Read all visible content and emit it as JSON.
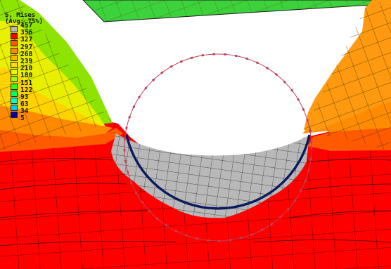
{
  "legend": {
    "title_line1": "S, Mises",
    "title_line2": "(Avg: 75%)",
    "levels": [
      {
        "value": "457",
        "color": "#b8b8b8"
      },
      {
        "value": "356",
        "color": "#ff0000"
      },
      {
        "value": "327",
        "color": "#ff5a00"
      },
      {
        "value": "297",
        "color": "#ff8c00"
      },
      {
        "value": "268",
        "color": "#ffb400"
      },
      {
        "value": "239",
        "color": "#ffdc00"
      },
      {
        "value": "210",
        "color": "#e6ff00"
      },
      {
        "value": "180",
        "color": "#9aff00"
      },
      {
        "value": "151",
        "color": "#33ff00"
      },
      {
        "value": "122",
        "color": "#00ff66"
      },
      {
        "value": "93",
        "color": "#00ffcc"
      },
      {
        "value": "63",
        "color": "#00c8ff"
      },
      {
        "value": "34",
        "color": "#0050ff"
      },
      {
        "value": "5",
        "color": "#0000a0"
      }
    ]
  },
  "colors": {
    "background": "#ffffff",
    "max_stress": "#ff0000",
    "over_limit_gray": "#b8b8b8",
    "indenter_outline": "#0a1a5e",
    "target_ring": "#c0405a"
  }
}
